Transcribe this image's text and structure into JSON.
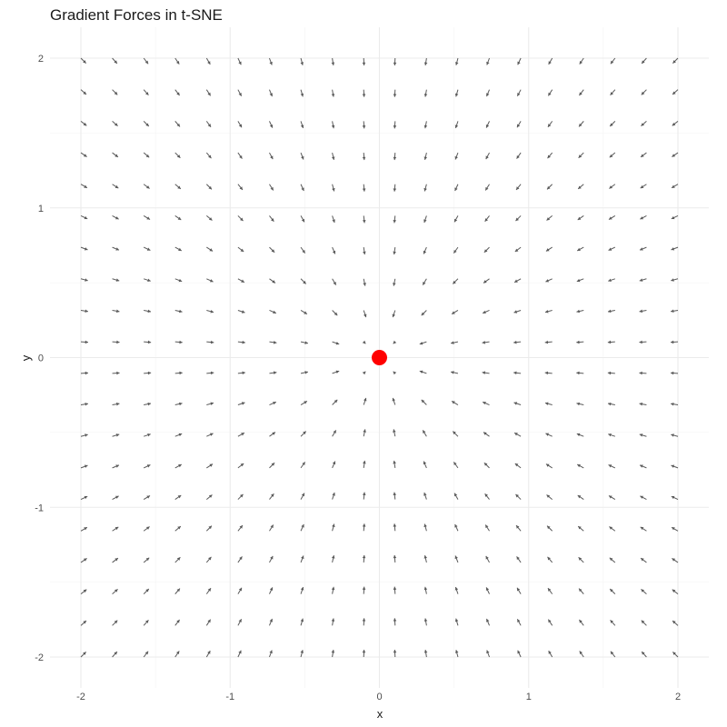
{
  "chart_data": {
    "type": "quiver",
    "title": "Gradient Forces in t-SNE",
    "xlabel": "x",
    "ylabel": "y",
    "xlim": [
      -2,
      2
    ],
    "ylim": [
      -2,
      2
    ],
    "x_ticks": [
      -2,
      -1,
      0,
      1,
      2
    ],
    "y_ticks": [
      -2,
      -1,
      0,
      1,
      2
    ],
    "x_tick_labels": [
      "-2",
      "-1",
      "0",
      "1",
      "2"
    ],
    "y_tick_labels": [
      "-2",
      "-1",
      "0",
      "1",
      "2"
    ],
    "grid": true,
    "legend": "none",
    "field": {
      "grid_range": [
        -2,
        2
      ],
      "grid_points_per_axis": 20,
      "direction": "toward center point"
    },
    "center_point": {
      "x": 0,
      "y": 0
    },
    "colors": {
      "arrows": "#595959",
      "center_point": "#ff0000",
      "grid": "#ebebeb"
    }
  }
}
